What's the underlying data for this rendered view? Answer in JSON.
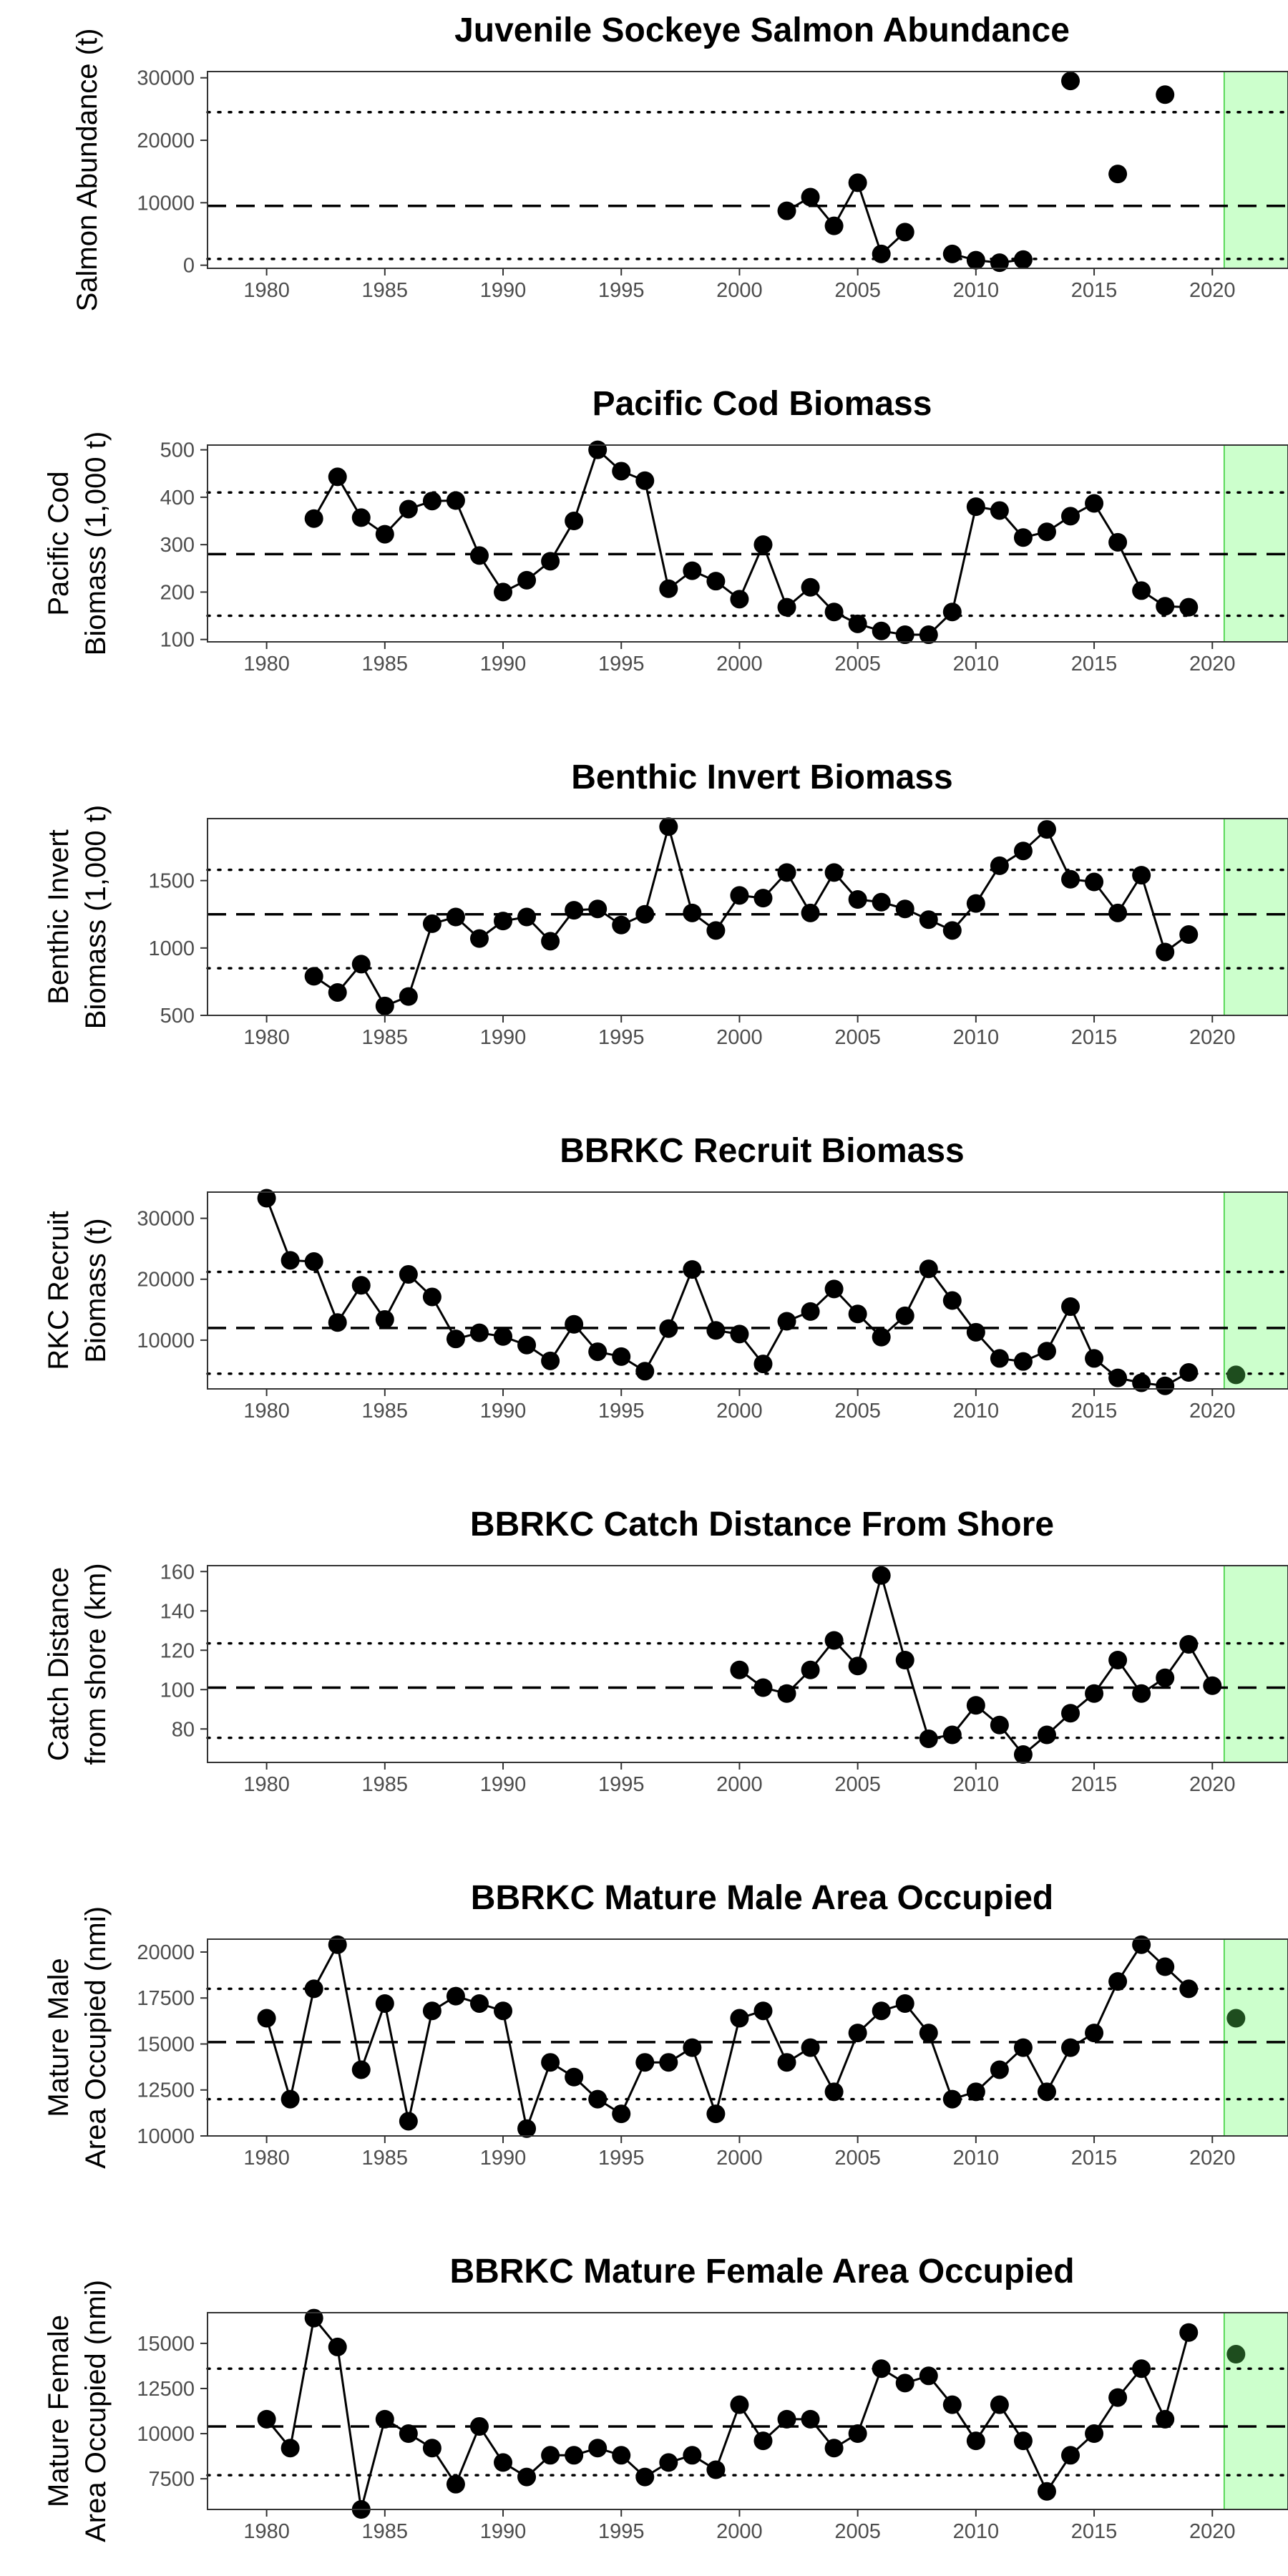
{
  "figure": {
    "x_ticks": [
      1980,
      1985,
      1990,
      1995,
      2000,
      2005,
      2010,
      2015,
      2020
    ]
  },
  "colors": {
    "highlight_fill": "#ccffcc",
    "highlight_stroke": "#33cc33",
    "point": "#000000",
    "point_latest": "#1e4d1e",
    "line": "#000000",
    "tick_text": "#4d4d4d"
  },
  "chart_data": [
    {
      "type": "line",
      "title": "Juvenile Sockeye Salmon Abundance",
      "ylabel": [
        "Salmon Abundance (t)"
      ],
      "xlim": [
        1977.5,
        2023.2
      ],
      "ylim": [
        -500,
        31000
      ],
      "yticks": [
        0,
        10000,
        20000,
        30000
      ],
      "yticklabels": [
        "0",
        "10000",
        "20000",
        "30000"
      ],
      "highlight_xrange": [
        2020.5,
        2023.2
      ],
      "mean": 9500,
      "sd_lines": [
        1000,
        24500
      ],
      "points": [
        [
          2002,
          8700
        ],
        [
          2003,
          10900
        ],
        [
          2004,
          6300
        ],
        [
          2005,
          13200
        ],
        [
          2006,
          1800
        ],
        [
          2007,
          5300
        ],
        [
          2009,
          1800
        ],
        [
          2010,
          800
        ],
        [
          2011,
          400
        ],
        [
          2012,
          900
        ],
        [
          2014,
          29500
        ],
        [
          2016,
          14600
        ],
        [
          2018,
          27300
        ]
      ],
      "segments": [
        [
          2002,
          2007
        ],
        [
          2009,
          2012
        ]
      ],
      "latest": null
    },
    {
      "type": "line",
      "title": "Pacific Cod Biomass",
      "ylabel": [
        "Pacific Cod",
        "Biomass (1,000 t)"
      ],
      "xlim": [
        1977.5,
        2023.2
      ],
      "ylim": [
        95,
        510
      ],
      "yticks": [
        100,
        200,
        300,
        400,
        500
      ],
      "yticklabels": [
        "100",
        "200",
        "300",
        "400",
        "500"
      ],
      "highlight_xrange": [
        2020.5,
        2023.2
      ],
      "mean": 280,
      "sd_lines": [
        150,
        410
      ],
      "points": [
        [
          1982,
          355
        ],
        [
          1983,
          443
        ],
        [
          1984,
          357
        ],
        [
          1985,
          322
        ],
        [
          1986,
          375
        ],
        [
          1987,
          392
        ],
        [
          1988,
          393
        ],
        [
          1989,
          277
        ],
        [
          1990,
          200
        ],
        [
          1991,
          225
        ],
        [
          1992,
          265
        ],
        [
          1993,
          350
        ],
        [
          1994,
          500
        ],
        [
          1995,
          455
        ],
        [
          1996,
          435
        ],
        [
          1997,
          207
        ],
        [
          1998,
          245
        ],
        [
          1999,
          223
        ],
        [
          2000,
          185
        ],
        [
          2001,
          300
        ],
        [
          2002,
          168
        ],
        [
          2003,
          210
        ],
        [
          2004,
          158
        ],
        [
          2005,
          133
        ],
        [
          2006,
          118
        ],
        [
          2007,
          110
        ],
        [
          2008,
          110
        ],
        [
          2009,
          158
        ],
        [
          2010,
          380
        ],
        [
          2011,
          372
        ],
        [
          2012,
          315
        ],
        [
          2013,
          327
        ],
        [
          2014,
          360
        ],
        [
          2015,
          387
        ],
        [
          2016,
          305
        ],
        [
          2017,
          203
        ],
        [
          2018,
          170
        ],
        [
          2019,
          168
        ]
      ],
      "segments": [
        [
          1982,
          2019
        ]
      ],
      "latest": null
    },
    {
      "type": "line",
      "title": "Benthic Invert Biomass",
      "ylabel": [
        "Benthic Invert",
        "Biomass (1,000 t)"
      ],
      "xlim": [
        1977.5,
        2023.2
      ],
      "ylim": [
        500,
        1960
      ],
      "yticks": [
        500,
        1000,
        1500
      ],
      "yticklabels": [
        "500",
        "1000",
        "1500"
      ],
      "highlight_xrange": [
        2020.5,
        2023.2
      ],
      "mean": 1250,
      "sd_lines": [
        850,
        1580
      ],
      "points": [
        [
          1982,
          790
        ],
        [
          1983,
          670
        ],
        [
          1984,
          880
        ],
        [
          1985,
          570
        ],
        [
          1986,
          640
        ],
        [
          1987,
          1180
        ],
        [
          1988,
          1230
        ],
        [
          1989,
          1070
        ],
        [
          1990,
          1200
        ],
        [
          1991,
          1230
        ],
        [
          1992,
          1050
        ],
        [
          1993,
          1280
        ],
        [
          1994,
          1290
        ],
        [
          1995,
          1170
        ],
        [
          1996,
          1250
        ],
        [
          1997,
          1900
        ],
        [
          1998,
          1260
        ],
        [
          1999,
          1130
        ],
        [
          2000,
          1390
        ],
        [
          2001,
          1370
        ],
        [
          2002,
          1560
        ],
        [
          2003,
          1260
        ],
        [
          2004,
          1560
        ],
        [
          2005,
          1360
        ],
        [
          2006,
          1340
        ],
        [
          2007,
          1290
        ],
        [
          2008,
          1210
        ],
        [
          2009,
          1130
        ],
        [
          2010,
          1330
        ],
        [
          2011,
          1610
        ],
        [
          2012,
          1720
        ],
        [
          2013,
          1880
        ],
        [
          2014,
          1510
        ],
        [
          2015,
          1490
        ],
        [
          2016,
          1260
        ],
        [
          2017,
          1540
        ],
        [
          2018,
          970
        ],
        [
          2019,
          1100
        ]
      ],
      "segments": [
        [
          1982,
          2019
        ]
      ],
      "latest": null
    },
    {
      "type": "line",
      "title": "BBRKC Recruit Biomass",
      "ylabel": [
        "RKC Recruit",
        "Biomass (t)"
      ],
      "xlim": [
        1977.5,
        2023.2
      ],
      "ylim": [
        2000,
        34300
      ],
      "yticks": [
        10000,
        20000,
        30000
      ],
      "yticklabels": [
        "10000",
        "20000",
        "30000"
      ],
      "highlight_xrange": [
        2020.5,
        2023.2
      ],
      "mean": 12000,
      "sd_lines": [
        4500,
        21200
      ],
      "points": [
        [
          1980,
          33300
        ],
        [
          1981,
          23100
        ],
        [
          1982,
          22900
        ],
        [
          1983,
          12900
        ],
        [
          1984,
          19000
        ],
        [
          1985,
          13400
        ],
        [
          1986,
          20800
        ],
        [
          1987,
          17100
        ],
        [
          1988,
          10200
        ],
        [
          1989,
          11200
        ],
        [
          1990,
          10600
        ],
        [
          1991,
          9200
        ],
        [
          1992,
          6600
        ],
        [
          1993,
          12600
        ],
        [
          1994,
          8100
        ],
        [
          1995,
          7300
        ],
        [
          1996,
          4900
        ],
        [
          1997,
          11900
        ],
        [
          1998,
          21600
        ],
        [
          1999,
          11600
        ],
        [
          2000,
          11000
        ],
        [
          2001,
          6100
        ],
        [
          2002,
          13100
        ],
        [
          2003,
          14700
        ],
        [
          2004,
          18400
        ],
        [
          2005,
          14300
        ],
        [
          2006,
          10500
        ],
        [
          2007,
          14000
        ],
        [
          2008,
          21700
        ],
        [
          2009,
          16500
        ],
        [
          2010,
          11300
        ],
        [
          2011,
          7000
        ],
        [
          2012,
          6500
        ],
        [
          2013,
          8200
        ],
        [
          2014,
          15500
        ],
        [
          2015,
          7000
        ],
        [
          2016,
          3800
        ],
        [
          2017,
          3000
        ],
        [
          2018,
          2500
        ],
        [
          2019,
          4700
        ]
      ],
      "segments": [
        [
          1980,
          2019
        ]
      ],
      "latest": [
        2021,
        4300
      ]
    },
    {
      "type": "line",
      "title": "BBRKC Catch Distance From Shore",
      "ylabel": [
        "Catch Distance",
        "from shore (km)"
      ],
      "xlim": [
        1977.5,
        2023.2
      ],
      "ylim": [
        63,
        163
      ],
      "yticks": [
        80,
        100,
        120,
        140,
        160
      ],
      "yticklabels": [
        "80",
        "100",
        "120",
        "140",
        "160"
      ],
      "highlight_xrange": [
        2020.5,
        2023.2
      ],
      "mean": 101,
      "sd_lines": [
        75.5,
        123.5
      ],
      "points": [
        [
          2000,
          110
        ],
        [
          2001,
          101
        ],
        [
          2002,
          98
        ],
        [
          2003,
          110
        ],
        [
          2004,
          125
        ],
        [
          2005,
          112
        ],
        [
          2006,
          158
        ],
        [
          2007,
          115
        ],
        [
          2008,
          75
        ],
        [
          2009,
          77
        ],
        [
          2010,
          92
        ],
        [
          2011,
          82
        ],
        [
          2012,
          67
        ],
        [
          2013,
          77
        ],
        [
          2014,
          88
        ],
        [
          2015,
          98
        ],
        [
          2016,
          115
        ],
        [
          2017,
          98
        ],
        [
          2018,
          106
        ],
        [
          2019,
          123
        ],
        [
          2020,
          102
        ]
      ],
      "segments": [
        [
          2000,
          2020
        ]
      ],
      "latest": null
    },
    {
      "type": "line",
      "title": "BBRKC Mature Male Area Occupied",
      "ylabel": [
        "Mature Male",
        "Area Occupied (nmi)"
      ],
      "xlim": [
        1977.5,
        2023.2
      ],
      "ylim": [
        10000,
        20700
      ],
      "yticks": [
        10000,
        12500,
        15000,
        17500,
        20000
      ],
      "yticklabels": [
        "10000",
        "12500",
        "15000",
        "17500",
        "20000"
      ],
      "highlight_xrange": [
        2020.5,
        2023.2
      ],
      "mean": 15100,
      "sd_lines": [
        12000,
        18000
      ],
      "points": [
        [
          1980,
          16400
        ],
        [
          1981,
          12000
        ],
        [
          1982,
          18000
        ],
        [
          1983,
          20400
        ],
        [
          1984,
          13600
        ],
        [
          1985,
          17200
        ],
        [
          1986,
          10800
        ],
        [
          1987,
          16800
        ],
        [
          1988,
          17600
        ],
        [
          1989,
          17200
        ],
        [
          1990,
          16800
        ],
        [
          1991,
          10400
        ],
        [
          1992,
          14000
        ],
        [
          1993,
          13200
        ],
        [
          1994,
          12000
        ],
        [
          1995,
          11200
        ],
        [
          1996,
          14000
        ],
        [
          1997,
          14000
        ],
        [
          1998,
          14800
        ],
        [
          1999,
          11200
        ],
        [
          2000,
          16400
        ],
        [
          2001,
          16800
        ],
        [
          2002,
          14000
        ],
        [
          2003,
          14800
        ],
        [
          2004,
          12400
        ],
        [
          2005,
          15600
        ],
        [
          2006,
          16800
        ],
        [
          2007,
          17200
        ],
        [
          2008,
          15600
        ],
        [
          2009,
          12000
        ],
        [
          2010,
          12400
        ],
        [
          2011,
          13600
        ],
        [
          2012,
          14800
        ],
        [
          2013,
          12400
        ],
        [
          2014,
          14800
        ],
        [
          2015,
          15600
        ],
        [
          2016,
          18400
        ],
        [
          2017,
          20400
        ],
        [
          2018,
          19200
        ],
        [
          2019,
          18000
        ]
      ],
      "segments": [
        [
          1980,
          2019
        ]
      ],
      "latest": [
        2021,
        16400
      ]
    },
    {
      "type": "line",
      "title": "BBRKC Mature Female Area Occupied",
      "ylabel": [
        "Mature Female",
        "Area Occupied (nmi)"
      ],
      "xlim": [
        1977.5,
        2023.2
      ],
      "ylim": [
        5800,
        16700
      ],
      "yticks": [
        7500,
        10000,
        12500,
        15000
      ],
      "yticklabels": [
        "7500",
        "10000",
        "12500",
        "15000"
      ],
      "highlight_xrange": [
        2020.5,
        2023.2
      ],
      "mean": 10400,
      "sd_lines": [
        7700,
        13600
      ],
      "points": [
        [
          1980,
          10800
        ],
        [
          1981,
          9200
        ],
        [
          1982,
          16400
        ],
        [
          1983,
          14800
        ],
        [
          1984,
          5800
        ],
        [
          1985,
          10800
        ],
        [
          1986,
          10000
        ],
        [
          1987,
          9200
        ],
        [
          1988,
          7200
        ],
        [
          1989,
          10400
        ],
        [
          1990,
          8400
        ],
        [
          1991,
          7600
        ],
        [
          1992,
          8800
        ],
        [
          1993,
          8800
        ],
        [
          1994,
          9200
        ],
        [
          1995,
          8800
        ],
        [
          1996,
          7600
        ],
        [
          1997,
          8400
        ],
        [
          1998,
          8800
        ],
        [
          1999,
          8000
        ],
        [
          2000,
          11600
        ],
        [
          2001,
          9600
        ],
        [
          2002,
          10800
        ],
        [
          2003,
          10800
        ],
        [
          2004,
          9200
        ],
        [
          2005,
          10000
        ],
        [
          2006,
          13600
        ],
        [
          2007,
          12800
        ],
        [
          2008,
          13200
        ],
        [
          2009,
          11600
        ],
        [
          2010,
          9600
        ],
        [
          2011,
          11600
        ],
        [
          2012,
          9600
        ],
        [
          2013,
          6800
        ],
        [
          2014,
          8800
        ],
        [
          2015,
          10000
        ],
        [
          2016,
          12000
        ],
        [
          2017,
          13600
        ],
        [
          2018,
          10800
        ],
        [
          2019,
          15600
        ]
      ],
      "segments": [
        [
          1980,
          2019
        ]
      ],
      "latest": [
        2021,
        14400
      ]
    }
  ]
}
